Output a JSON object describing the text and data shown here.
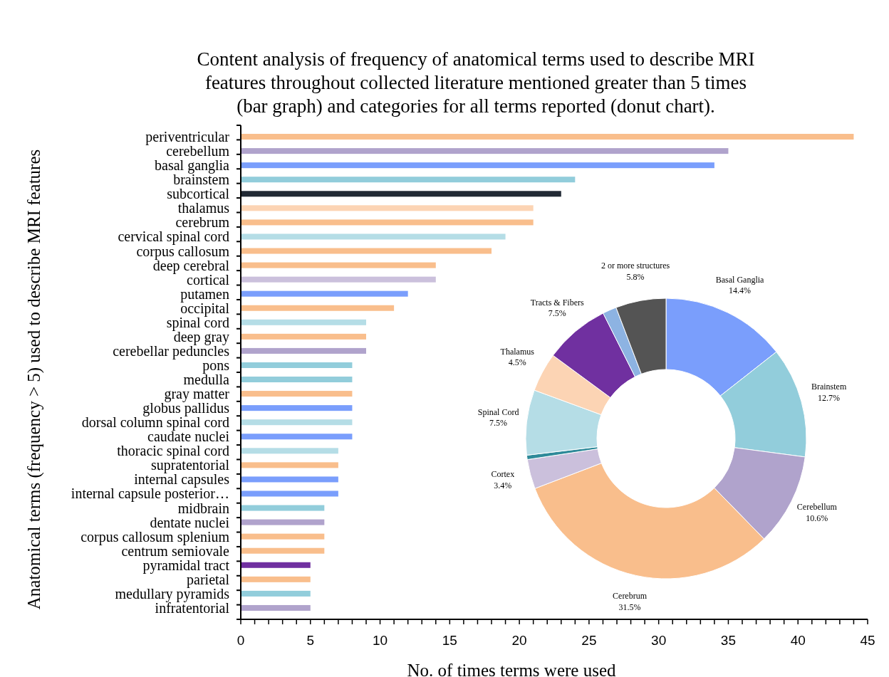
{
  "chart_data": [
    {
      "type": "bar",
      "orientation": "horizontal",
      "title": "Content analysis of frequency of anatomical terms used to describe MRI features throughout collected literature mentioned greater than 5 times (bar graph) and categories for all terms reported (donut chart).",
      "xlabel": "No. of times terms were used",
      "ylabel": "Anatomical terms (frequency > 5) used to describe MRI features",
      "categories": [
        "periventricular",
        "cerebellum",
        "basal ganglia",
        "brainstem",
        "subcortical",
        "thalamus",
        "cerebrum",
        "cervical spinal cord",
        "corpus callosum",
        "deep cerebral",
        "cortical",
        "putamen",
        "occipital",
        "spinal cord",
        "deep gray",
        "cerebellar peduncles",
        "pons",
        "medulla",
        "gray matter",
        "globus pallidus",
        "dorsal column spinal cord",
        "caudate nuclei",
        "thoracic spinal cord",
        "supratentorial",
        "internal capsules",
        "internal capsule posterior…",
        "midbrain",
        "dentate nuclei",
        "corpus callosum splenium",
        "centrum semiovale",
        "pyramidal tract",
        "parietal",
        "medullary pyramids",
        "infratentorial"
      ],
      "values": [
        44,
        35,
        34,
        24,
        23,
        21,
        21,
        19,
        18,
        14,
        14,
        12,
        11,
        9,
        9,
        9,
        8,
        8,
        8,
        8,
        8,
        8,
        7,
        7,
        7,
        7,
        6,
        6,
        6,
        6,
        5,
        5,
        5,
        5
      ],
      "colors": [
        "#f9be8c",
        "#b0a3cc",
        "#7a9efc",
        "#92cddb",
        "#222a35",
        "#fcd4b4",
        "#f9be8c",
        "#b5dde6",
        "#f9be8c",
        "#f9be8c",
        "#cbc0dc",
        "#7a9efc",
        "#f9be8c",
        "#b5dde6",
        "#f9be8c",
        "#b0a3cc",
        "#92cddb",
        "#92cddb",
        "#f9be8c",
        "#7a9efc",
        "#b5dde6",
        "#7a9efc",
        "#b5dde6",
        "#f9be8c",
        "#7a9efc",
        "#7a9efc",
        "#92cddb",
        "#b0a3cc",
        "#f9be8c",
        "#f9be8c",
        "#7030a0",
        "#f9be8c",
        "#92cddb",
        "#b0a3cc"
      ],
      "xlim": [
        0,
        45
      ],
      "xticks": [
        0,
        {
          "value": 1,
          "label": null
        },
        {
          "value": 2,
          "label": null
        },
        {
          "value": 3,
          "label": null
        },
        {
          "value": 4,
          "label": null
        },
        5,
        {
          "value": 6,
          "label": null
        },
        {
          "value": 7,
          "label": null
        },
        {
          "value": 8,
          "label": null
        },
        {
          "value": 9,
          "label": null
        },
        10,
        {
          "value": 11,
          "label": null
        },
        {
          "value": 12,
          "label": null
        },
        {
          "value": 13,
          "label": null
        },
        {
          "value": 14,
          "label": null
        },
        15,
        {
          "value": 16,
          "label": null
        },
        {
          "value": 17,
          "label": null
        },
        {
          "value": 18,
          "label": null
        },
        {
          "value": 19,
          "label": null
        },
        20,
        {
          "value": 21,
          "label": null
        },
        {
          "value": 22,
          "label": null
        },
        {
          "value": 23,
          "label": null
        },
        {
          "value": 24,
          "label": null
        },
        25,
        {
          "value": 26,
          "label": null
        },
        {
          "value": 27,
          "label": null
        },
        {
          "value": 28,
          "label": null
        },
        {
          "value": 29,
          "label": null
        },
        30,
        {
          "value": 31,
          "label": null
        },
        {
          "value": 32,
          "label": null
        },
        {
          "value": 33,
          "label": null
        },
        {
          "value": 34,
          "label": null
        },
        35,
        {
          "value": 36,
          "label": null
        },
        {
          "value": 37,
          "label": null
        },
        {
          "value": 38,
          "label": null
        },
        {
          "value": 39,
          "label": null
        },
        40,
        {
          "value": 41,
          "label": null
        },
        {
          "value": 42,
          "label": null
        },
        {
          "value": 43,
          "label": null
        },
        {
          "value": 44,
          "label": null
        },
        45
      ]
    },
    {
      "type": "donut",
      "categories": [
        "Basal Ganglia",
        "Brainstem",
        "Cerebellum",
        "Cerebrum",
        "Cortex",
        null,
        "Spinal Cord",
        "Thalamus",
        "Tracts & Fibers",
        null,
        "2 or more structures"
      ],
      "values": [
        14.4,
        12.7,
        10.6,
        31.5,
        3.4,
        0.5,
        7.5,
        4.5,
        7.5,
        1.6,
        5.8
      ],
      "value_labels": [
        "14.4%",
        "12.7%",
        "10.6%",
        "31.5%",
        "3.4%",
        null,
        "7.5%",
        "4.5%",
        "7.5%",
        null,
        "5.8%"
      ],
      "colors": [
        "#7a9efc",
        "#92cddb",
        "#b0a3cc",
        "#f9be8c",
        "#cbc0dc",
        "#2e8a99",
        "#b5dde6",
        "#fcd4b4",
        "#7030a0",
        "#8db3e2",
        "#545454"
      ]
    }
  ]
}
